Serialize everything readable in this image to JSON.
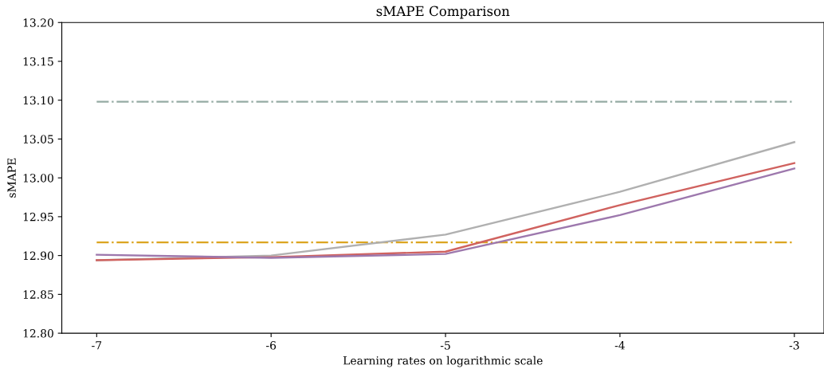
{
  "chart_data": {
    "type": "line",
    "title": "sMAPE Comparison",
    "xlabel": "Learning rates on logarithmic scale",
    "ylabel": "sMAPE",
    "x": [
      -7,
      -6,
      -5,
      -4,
      -3
    ],
    "series": [
      {
        "color": "#95aba3",
        "values": [
          13.098,
          13.098,
          13.098,
          13.098,
          13.098
        ],
        "line_style": "dashed"
      },
      {
        "color": "#dba520",
        "values": [
          12.917,
          12.917,
          12.917,
          12.917,
          12.917
        ],
        "line_style": "dashed"
      },
      {
        "color": "#b0b0b0",
        "values": [
          12.894,
          12.9,
          12.927,
          12.982,
          13.046
        ]
      },
      {
        "color": "#d0625f",
        "values": [
          12.894,
          12.898,
          12.905,
          12.965,
          13.019
        ]
      },
      {
        "color": "#9d78ad",
        "values": [
          12.901,
          12.897,
          12.902,
          12.952,
          13.012
        ]
      }
    ],
    "xlim": [
      -7.2,
      -2.83
    ],
    "ylim": [
      12.8,
      13.2
    ],
    "xticks": [
      -7,
      -6,
      -5,
      -4,
      -3
    ],
    "yticks": [
      {
        "value": 12.8,
        "label": "12.80"
      },
      {
        "value": 12.85,
        "label": "12.85"
      },
      {
        "value": 12.9,
        "label": "12.90"
      },
      {
        "value": 12.95,
        "label": "12.95"
      },
      {
        "value": 13.0,
        "label": "13.00"
      },
      {
        "value": 13.05,
        "label": "13.05"
      },
      {
        "value": 13.1,
        "label": "13.10"
      },
      {
        "value": 13.15,
        "label": "13.15"
      },
      {
        "value": 13.2,
        "label": "13.20"
      }
    ],
    "grid": false,
    "legend": false
  }
}
